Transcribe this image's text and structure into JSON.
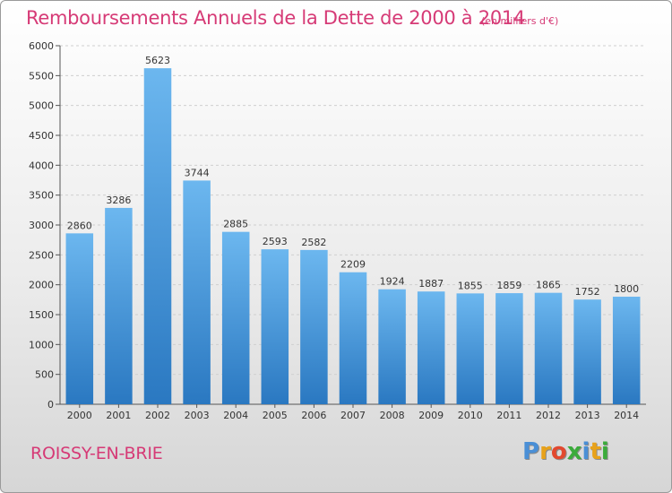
{
  "header": {
    "title": "Remboursements Annuels de la Dette de 2000 à 2014",
    "subtitle": "(en milliers d'€)"
  },
  "footer": {
    "commune": "ROISSY-EN-BRIE",
    "logo_letters": [
      {
        "ch": "P",
        "color": "#4a8fd6"
      },
      {
        "ch": "r",
        "color": "#e8a21a"
      },
      {
        "ch": "o",
        "color": "#e2482f"
      },
      {
        "ch": "x",
        "color": "#3bab3b"
      },
      {
        "ch": "i",
        "color": "#4a8fd6"
      },
      {
        "ch": "t",
        "color": "#e8a21a"
      },
      {
        "ch": "i",
        "color": "#3bab3b"
      }
    ]
  },
  "chart_data": {
    "type": "bar",
    "title": "Remboursements Annuels de la Dette de 2000 à 2014",
    "subtitle": "(en milliers d'€)",
    "categories": [
      "2000",
      "2001",
      "2002",
      "2003",
      "2004",
      "2005",
      "2006",
      "2007",
      "2008",
      "2009",
      "2010",
      "2011",
      "2012",
      "2013",
      "2014"
    ],
    "values": [
      2860,
      3286,
      5623,
      3744,
      2885,
      2593,
      2582,
      2209,
      1924,
      1887,
      1855,
      1859,
      1865,
      1752,
      1800
    ],
    "ylim": [
      0,
      6000
    ],
    "yticks": [
      0,
      500,
      1000,
      1500,
      2000,
      2500,
      3000,
      3500,
      4000,
      4500,
      5000,
      5500,
      6000
    ],
    "grid": true,
    "bar_color_top": "#6cb7ef",
    "bar_color_bottom": "#2a78c1",
    "label_color": "#333333"
  }
}
